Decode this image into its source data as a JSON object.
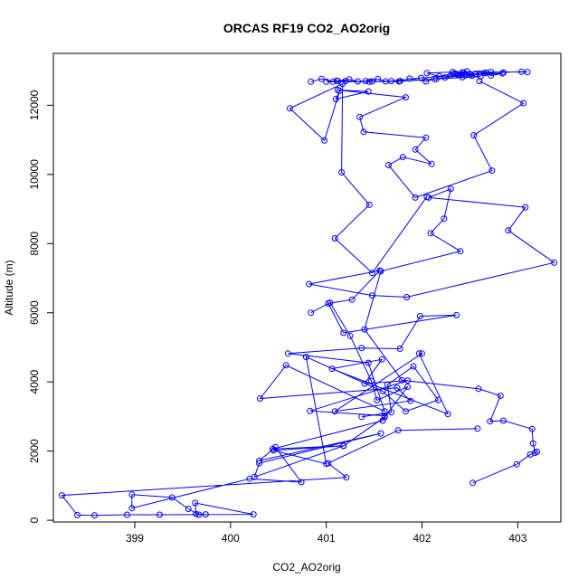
{
  "chart_data": {
    "type": "line",
    "title": "ORCAS RF19 CO2_AO2orig",
    "xlabel": "CO2_AO2orig",
    "ylabel": "Altitude (m)",
    "xlim": [
      398.15,
      403.45
    ],
    "ylim": [
      -50,
      13500
    ],
    "xticks": [
      399,
      400,
      401,
      402,
      403
    ],
    "yticks": [
      0,
      2000,
      4000,
      6000,
      8000,
      10000,
      12000
    ],
    "grid": false,
    "legend": "none",
    "marker": "open-circle",
    "color": "#0000ff",
    "series": [
      {
        "points": [
          [
            402.53,
            1080
          ],
          [
            402.99,
            1620
          ],
          [
            403.13,
            1900
          ],
          [
            403.2,
            1980
          ],
          [
            403.18,
            1950
          ],
          [
            403.16,
            2220
          ],
          [
            403.15,
            2640
          ],
          [
            402.85,
            2880
          ],
          [
            402.71,
            2860
          ],
          [
            402.82,
            3600
          ],
          [
            402.59,
            3800
          ],
          [
            401.79,
            4050
          ],
          [
            401.4,
            5520
          ],
          [
            401.57,
            7200
          ],
          [
            402.4,
            7780
          ],
          [
            402.09,
            8300
          ],
          [
            402.23,
            8720
          ],
          [
            402.3,
            9580
          ],
          [
            402.07,
            9330
          ],
          [
            403.08,
            9050
          ],
          [
            402.9,
            8380
          ],
          [
            403.38,
            7450
          ],
          [
            401.84,
            6450
          ],
          [
            401.48,
            6500
          ],
          [
            400.82,
            6830
          ],
          [
            401.56,
            7220
          ],
          [
            401.27,
            6380
          ],
          [
            401.02,
            6270
          ],
          [
            401.18,
            5420
          ],
          [
            402.36,
            5930
          ],
          [
            401.98,
            5900
          ],
          [
            401.77,
            4960
          ],
          [
            401.37,
            4980
          ],
          [
            400.6,
            4820
          ],
          [
            401.44,
            4550
          ],
          [
            401.61,
            3150
          ],
          [
            400.58,
            4480
          ],
          [
            400.31,
            3520
          ],
          [
            401.74,
            3830
          ],
          [
            401.88,
            3450
          ],
          [
            401.09,
            3150
          ],
          [
            402.0,
            4820
          ],
          [
            401.97,
            4820
          ],
          [
            402.27,
            3070
          ],
          [
            401.06,
            4380
          ],
          [
            401.58,
            4650
          ],
          [
            401.4,
            3950
          ],
          [
            401.85,
            4040
          ],
          [
            400.83,
            3160
          ],
          [
            401.61,
            3020
          ],
          [
            401.59,
            2880
          ],
          [
            400.44,
            2060
          ],
          [
            401.18,
            2150
          ],
          [
            400.25,
            1250
          ],
          [
            400.3,
            1650
          ],
          [
            401.57,
            2510
          ],
          [
            400.3,
            1720
          ],
          [
            400.47,
            2110
          ],
          [
            400.74,
            1100
          ],
          [
            400.2,
            1200
          ],
          [
            398.97,
            350
          ],
          [
            398.97,
            740
          ],
          [
            399.39,
            660
          ],
          [
            399.56,
            330
          ],
          [
            399.67,
            160
          ],
          [
            399.74,
            170
          ],
          [
            399.64,
            180
          ],
          [
            399.63,
            500
          ],
          [
            400.24,
            170
          ],
          [
            399.26,
            160
          ],
          [
            398.92,
            160
          ],
          [
            398.58,
            140
          ],
          [
            398.4,
            150
          ],
          [
            398.24,
            720
          ],
          [
            401.21,
            1240
          ],
          [
            401.02,
            1650
          ],
          [
            401.75,
            2600
          ],
          [
            402.58,
            2650
          ]
        ]
      },
      {
        "points": [
          [
            400.84,
            6000
          ],
          [
            401.04,
            6290
          ],
          [
            401.25,
            5330
          ],
          [
            401.47,
            4030
          ],
          [
            401.53,
            3470
          ],
          [
            401.85,
            3860
          ],
          [
            401.61,
            2980
          ],
          [
            401.18,
            2150
          ],
          [
            400.45,
            2020
          ],
          [
            401.0,
            1630
          ],
          [
            400.79,
            4720
          ],
          [
            401.59,
            3730
          ],
          [
            401.83,
            3150
          ],
          [
            402.17,
            3480
          ],
          [
            401.91,
            4450
          ],
          [
            401.64,
            3920
          ],
          [
            401.68,
            3120
          ],
          [
            401.37,
            2990
          ]
        ]
      },
      {
        "points": [
          [
            402.6,
            12700
          ],
          [
            403.06,
            12060
          ],
          [
            402.54,
            11130
          ],
          [
            402.73,
            10110
          ],
          [
            401.93,
            9330
          ],
          [
            401.65,
            10270
          ],
          [
            401.8,
            10500
          ],
          [
            402.1,
            10300
          ],
          [
            401.93,
            10720
          ],
          [
            402.04,
            11060
          ],
          [
            401.39,
            11230
          ],
          [
            401.35,
            11660
          ],
          [
            401.83,
            12230
          ],
          [
            401.12,
            12440
          ],
          [
            401.44,
            12400
          ],
          [
            401.1,
            12180
          ],
          [
            401.14,
            12420
          ],
          [
            400.98,
            10980
          ],
          [
            400.62,
            11910
          ],
          [
            401.17,
            12620
          ],
          [
            401.16,
            10060
          ],
          [
            401.45,
            9120
          ],
          [
            401.09,
            8150
          ],
          [
            401.48,
            7150
          ],
          [
            402.05,
            9350
          ]
        ]
      },
      {
        "points": [
          [
            400.84,
            12680
          ],
          [
            400.95,
            12760
          ],
          [
            401.07,
            12680
          ],
          [
            401.12,
            12700
          ],
          [
            401.24,
            12750
          ],
          [
            401.33,
            12690
          ],
          [
            401.41,
            12700
          ],
          [
            401.54,
            12760
          ],
          [
            401.62,
            12690
          ],
          [
            401.77,
            12700
          ],
          [
            401.87,
            12770
          ],
          [
            402.04,
            12690
          ],
          [
            402.13,
            12760
          ],
          [
            402.24,
            12800
          ],
          [
            402.38,
            12870
          ],
          [
            402.46,
            12870
          ],
          [
            402.52,
            12850
          ],
          [
            402.6,
            12920
          ],
          [
            402.67,
            12940
          ],
          [
            402.85,
            12950
          ],
          [
            403.04,
            12970
          ],
          [
            403.1,
            12960
          ],
          [
            402.72,
            12960
          ],
          [
            402.32,
            12960
          ],
          [
            402.05,
            12930
          ],
          [
            402.18,
            12840
          ],
          [
            402.34,
            12920
          ],
          [
            402.4,
            12890
          ],
          [
            402.44,
            12940
          ],
          [
            402.5,
            12900
          ],
          [
            402.56,
            12910
          ],
          [
            402.65,
            12930
          ],
          [
            402.72,
            12860
          ],
          [
            402.84,
            12920
          ],
          [
            402.44,
            12880
          ],
          [
            401.99,
            12790
          ],
          [
            401.68,
            12700
          ],
          [
            401.48,
            12690
          ],
          [
            401.2,
            12700
          ],
          [
            401.11,
            12710
          ],
          [
            401.0,
            12680
          ],
          [
            401.45,
            12680
          ],
          [
            401.76,
            12690
          ],
          [
            402.15,
            12760
          ],
          [
            402.61,
            12830
          ],
          [
            402.42,
            12810
          ],
          [
            402.3,
            12860
          ],
          [
            402.36,
            12900
          ],
          [
            402.42,
            12950
          ],
          [
            402.47,
            12980
          ]
        ]
      }
    ]
  }
}
